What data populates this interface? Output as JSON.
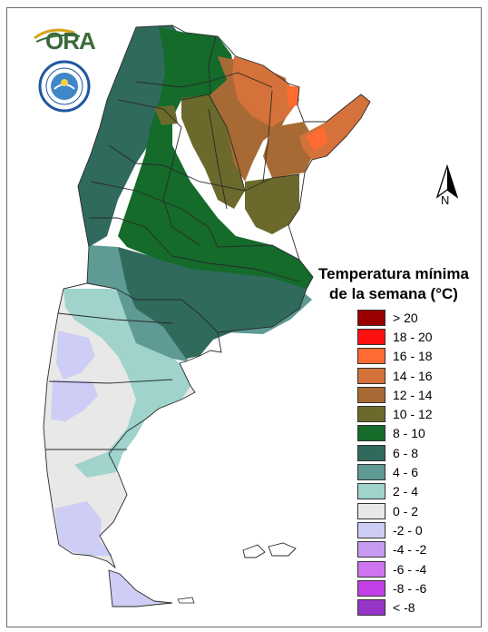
{
  "brand": {
    "logo_text": "ORA",
    "logo_colors": [
      "#2f6f3a",
      "#d9a31a"
    ]
  },
  "seal": {
    "ring_color": "#1f57a0",
    "center_color": "#3f88c8"
  },
  "north_arrow": {
    "label": "N"
  },
  "legend": {
    "title_line1": "Temperatura mínima",
    "title_line2": "de la semana (°C)",
    "items": [
      {
        "label": "> 20",
        "color": "#9b0000"
      },
      {
        "label": "18 - 20",
        "color": "#ff1010"
      },
      {
        "label": "16 - 18",
        "color": "#ff6b30"
      },
      {
        "label": "14 - 16",
        "color": "#d5713a"
      },
      {
        "label": "12 - 14",
        "color": "#a86a34"
      },
      {
        "label": "10 - 12",
        "color": "#6b6a2c"
      },
      {
        "label": "8 - 10",
        "color": "#146b2a"
      },
      {
        "label": "6 - 8",
        "color": "#2f6a5c"
      },
      {
        "label": "4 - 6",
        "color": "#5f9a94"
      },
      {
        "label": "2 - 4",
        "color": "#9fd3cc"
      },
      {
        "label": "0 - 2",
        "color": "#e8e8e6"
      },
      {
        "label": "-2 - 0",
        "color": "#cdcdf5"
      },
      {
        "label": "-4 - -2",
        "color": "#c89bf2"
      },
      {
        "label": "-6 - -4",
        "color": "#cf74f0"
      },
      {
        "label": "-8 - -6",
        "color": "#c141e6"
      },
      {
        "label": "< -8",
        "color": "#9735c9"
      }
    ]
  }
}
